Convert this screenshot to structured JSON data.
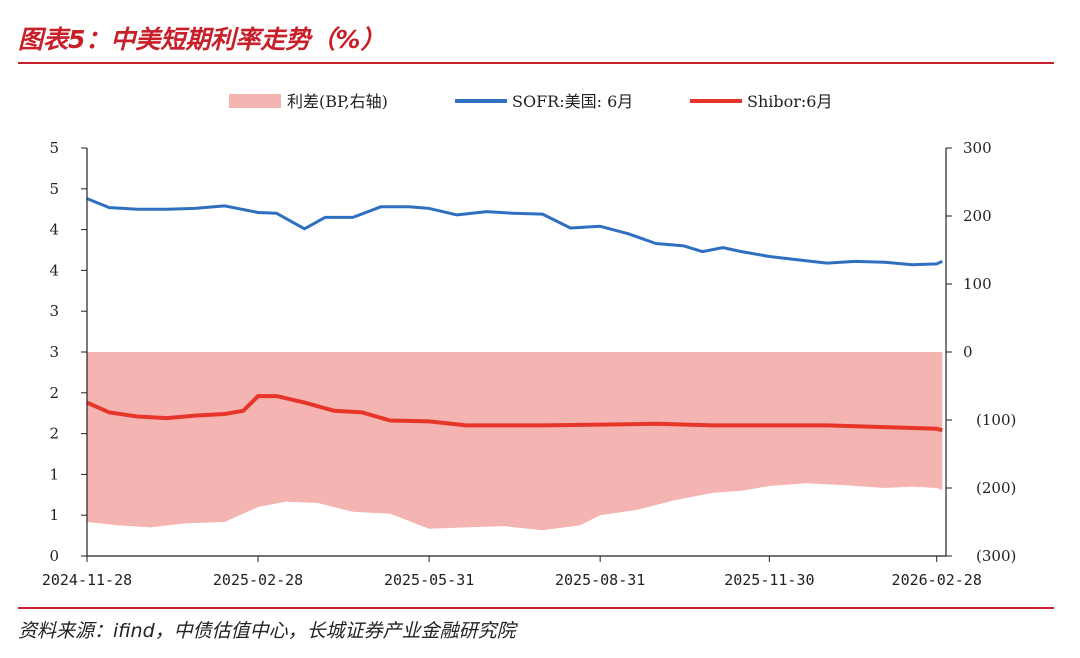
{
  "header": {
    "title": "图表5：中美短期利率走势（%）"
  },
  "footer": {
    "source": "资料来源：ifind，中债估值中心，长城证券产业金融研究院"
  },
  "colors": {
    "accent": "#c8202a",
    "sofr": "#2f6fc0",
    "shibor": "#e8352a",
    "spread": "#f4b4b2"
  },
  "chart_data": {
    "type": "line",
    "x_ticks": [
      "2024-11-28",
      "2025-02-28",
      "2025-05-31",
      "2025-08-31",
      "2025-11-30",
      "2026-02-28"
    ],
    "xlim": [
      "2024-11-28",
      "2026-03-05"
    ],
    "y_left": {
      "ticks": [
        "0",
        "1",
        "1",
        "2",
        "2",
        "3",
        "3",
        "4",
        "4",
        "5",
        "5"
      ],
      "ylim": [
        0,
        5
      ]
    },
    "y_right": {
      "ticks": [
        "(300)",
        "(200)",
        "(100)",
        "0",
        "100",
        "200",
        "300"
      ],
      "ylim": [
        -300,
        300
      ]
    },
    "legend": {
      "placement": "top",
      "entries": [
        "利差(BP,右轴)",
        "SOFR:美国: 6月",
        "Shibor:6月"
      ]
    },
    "series": [
      {
        "name": "利差(BP,右轴)",
        "type": "area",
        "axis": "right",
        "x": [
          "2024-11-28",
          "2024-12-15",
          "2025-01-01",
          "2025-01-20",
          "2025-02-10",
          "2025-02-28",
          "2025-03-15",
          "2025-04-01",
          "2025-04-20",
          "2025-05-10",
          "2025-05-31",
          "2025-06-20",
          "2025-07-10",
          "2025-07-31",
          "2025-08-20",
          "2025-08-31",
          "2025-09-20",
          "2025-10-10",
          "2025-10-31",
          "2025-11-15",
          "2025-11-30",
          "2025-12-20",
          "2026-01-10",
          "2026-01-31",
          "2026-02-15",
          "2026-02-28",
          "2026-03-03"
        ],
        "values": [
          -250,
          -255,
          -258,
          -252,
          -250,
          -228,
          -220,
          -222,
          -235,
          -238,
          -260,
          -258,
          -256,
          -262,
          -255,
          -240,
          -232,
          -218,
          -207,
          -204,
          -197,
          -193,
          -196,
          -200,
          -198,
          -200,
          -203
        ]
      },
      {
        "name": "SOFR:美国: 6月",
        "type": "line",
        "axis": "left",
        "x": [
          "2024-11-28",
          "2024-12-10",
          "2024-12-25",
          "2025-01-10",
          "2025-01-25",
          "2025-02-10",
          "2025-02-28",
          "2025-03-10",
          "2025-03-25",
          "2025-04-05",
          "2025-04-20",
          "2025-05-05",
          "2025-05-20",
          "2025-05-31",
          "2025-06-15",
          "2025-07-01",
          "2025-07-15",
          "2025-07-31",
          "2025-08-15",
          "2025-08-31",
          "2025-09-15",
          "2025-09-30",
          "2025-10-15",
          "2025-10-25",
          "2025-11-05",
          "2025-11-15",
          "2025-11-30",
          "2025-12-15",
          "2025-12-31",
          "2026-01-15",
          "2026-01-31",
          "2026-02-15",
          "2026-02-28",
          "2026-03-03"
        ],
        "values": [
          4.38,
          4.27,
          4.25,
          4.25,
          4.26,
          4.29,
          4.21,
          4.2,
          4.01,
          4.15,
          4.15,
          4.28,
          4.28,
          4.26,
          4.18,
          4.22,
          4.2,
          4.19,
          4.02,
          4.04,
          3.95,
          3.83,
          3.8,
          3.73,
          3.78,
          3.73,
          3.67,
          3.63,
          3.59,
          3.61,
          3.6,
          3.57,
          3.58,
          3.61
        ]
      },
      {
        "name": "Shibor:6月",
        "type": "line",
        "axis": "left",
        "x": [
          "2024-11-28",
          "2024-12-10",
          "2024-12-25",
          "2025-01-10",
          "2025-01-25",
          "2025-02-10",
          "2025-02-20",
          "2025-02-28",
          "2025-03-10",
          "2025-03-25",
          "2025-04-10",
          "2025-04-25",
          "2025-05-10",
          "2025-05-31",
          "2025-06-20",
          "2025-07-15",
          "2025-07-31",
          "2025-08-31",
          "2025-09-30",
          "2025-10-31",
          "2025-11-30",
          "2025-12-31",
          "2026-01-31",
          "2026-02-28",
          "2026-03-03"
        ],
        "values": [
          1.88,
          1.76,
          1.71,
          1.69,
          1.72,
          1.74,
          1.78,
          1.96,
          1.96,
          1.88,
          1.78,
          1.76,
          1.66,
          1.65,
          1.6,
          1.6,
          1.6,
          1.61,
          1.62,
          1.6,
          1.6,
          1.6,
          1.58,
          1.56,
          1.54
        ]
      }
    ]
  }
}
